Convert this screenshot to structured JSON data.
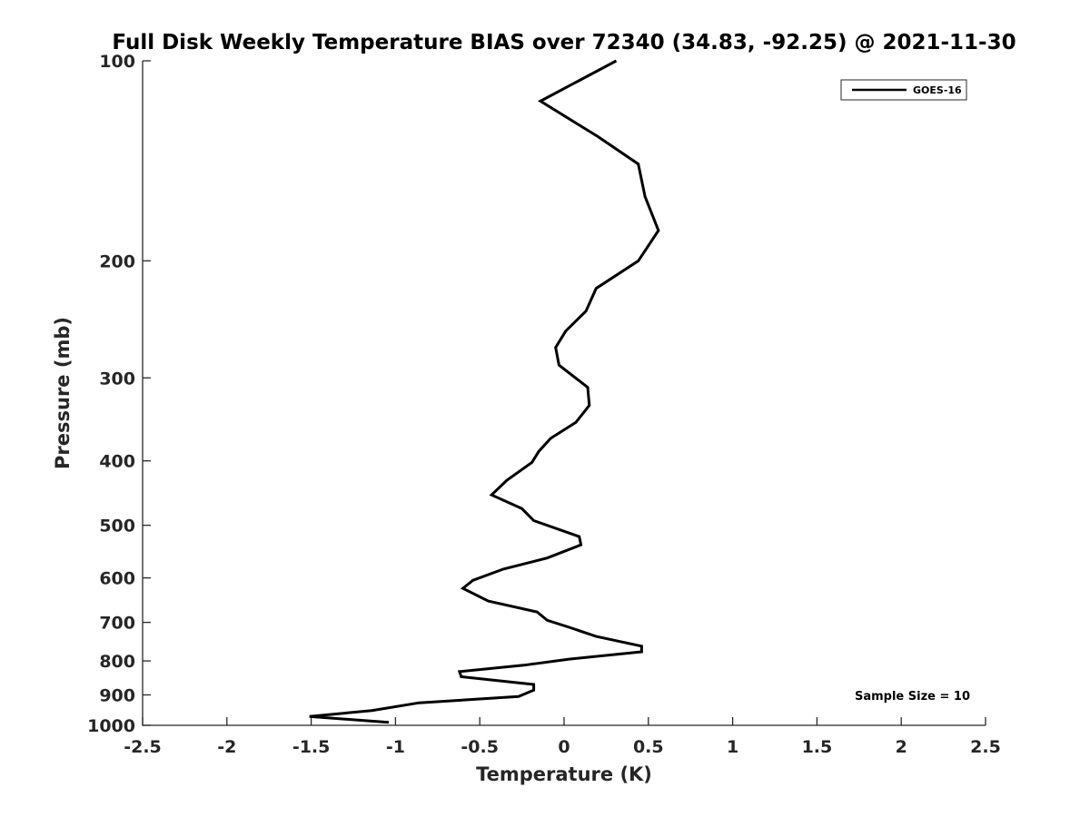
{
  "chart_data": {
    "type": "line",
    "title": "Full Disk Weekly Temperature BIAS over 72340 (34.83, -92.25) @ 2021-11-30",
    "xlabel": "Temperature (K)",
    "ylabel": "Pressure (mb)",
    "xlim": [
      -2.5,
      2.5
    ],
    "ylim": [
      100,
      1000
    ],
    "yscale": "log",
    "yreversed": true,
    "grid": false,
    "legend_position": "top-right",
    "x_ticks": [
      -2.5,
      -2,
      -1.5,
      -1,
      -0.5,
      0,
      0.5,
      1,
      1.5,
      2,
      2.5
    ],
    "x_tick_labels": [
      "-2.5",
      "-2",
      "-1.5",
      "-1",
      "-0.5",
      "0",
      "0.5",
      "1",
      "1.5",
      "2",
      "2.5"
    ],
    "y_ticks": [
      100,
      200,
      300,
      400,
      500,
      600,
      700,
      800,
      900,
      1000
    ],
    "y_tick_labels": [
      "100",
      "200",
      "300",
      "400",
      "500",
      "600",
      "700",
      "800",
      "900",
      "1000"
    ],
    "annotation": "Sample Size = 10",
    "series": [
      {
        "name": "GOES-16",
        "color": "#000000",
        "x": [
          0.31,
          -0.14,
          0.2,
          0.44,
          0.48,
          0.56,
          0.44,
          0.19,
          0.13,
          0.01,
          -0.05,
          -0.03,
          0.14,
          0.15,
          0.07,
          -0.08,
          -0.15,
          -0.19,
          -0.34,
          -0.43,
          -0.25,
          -0.18,
          0.09,
          0.1,
          -0.1,
          -0.36,
          -0.54,
          -0.6,
          -0.45,
          -0.16,
          -0.1,
          0.03,
          0.19,
          0.46,
          0.46,
          0.03,
          -0.24,
          -0.62,
          -0.61,
          -0.18,
          -0.18,
          -0.27,
          -0.86,
          -1.14,
          -1.51,
          -1.04
        ],
        "y": [
          100,
          115,
          130,
          143,
          160,
          180,
          200,
          220,
          238,
          255,
          270,
          287,
          310,
          330,
          350,
          370,
          387,
          402,
          428,
          450,
          472,
          492,
          520,
          535,
          560,
          582,
          605,
          622,
          650,
          675,
          695,
          712,
          735,
          760,
          775,
          795,
          812,
          830,
          845,
          868,
          885,
          905,
          925,
          950,
          970,
          990
        ]
      }
    ]
  }
}
